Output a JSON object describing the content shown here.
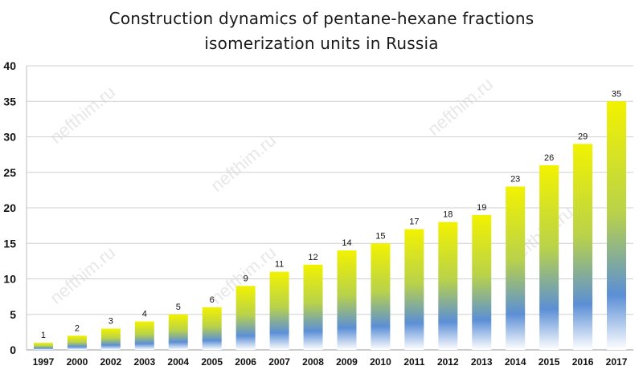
{
  "chart_data": {
    "type": "bar",
    "title_lines": [
      "Construction dynamics of pentane-hexane fractions",
      "isomerization units in Russia"
    ],
    "categories": [
      "1997",
      "2000",
      "2002",
      "2003",
      "2004",
      "2005",
      "2006",
      "2007",
      "2008",
      "2009",
      "2010",
      "2011",
      "2012",
      "2013",
      "2014",
      "2015",
      "2016",
      "2017"
    ],
    "values": [
      1,
      2,
      3,
      4,
      5,
      6,
      9,
      11,
      12,
      14,
      15,
      17,
      18,
      19,
      23,
      26,
      29,
      35
    ],
    "ylim": [
      0,
      40
    ],
    "yticks": [
      0,
      5,
      10,
      15,
      20,
      25,
      30,
      35,
      40
    ],
    "grid": true,
    "data_labels": true,
    "bar_gradient": {
      "top": "#f2f200",
      "middle": "#b9d24a",
      "lower": "#5b8fd6",
      "bottom": "#ffffff"
    },
    "watermark": "nefthim.ru"
  }
}
